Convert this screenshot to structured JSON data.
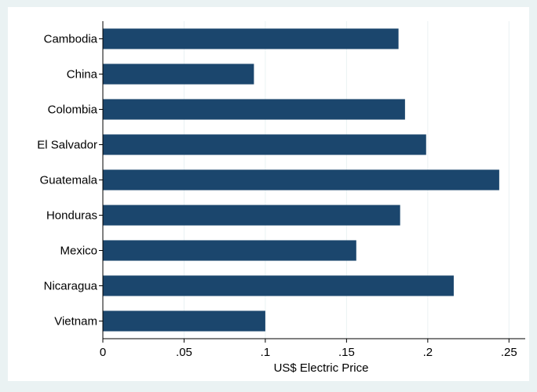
{
  "chart_data": {
    "type": "bar",
    "orientation": "horizontal",
    "categories": [
      "Cambodia",
      "China",
      "Colombia",
      "El Salvador",
      "Guatemala",
      "Honduras",
      "Mexico",
      "Nicaragua",
      "Vietnam"
    ],
    "values": [
      0.182,
      0.093,
      0.186,
      0.199,
      0.244,
      0.183,
      0.156,
      0.216,
      0.1
    ],
    "xlabel": "US$ Electric Price",
    "ylabel": "",
    "xlim": [
      0,
      0.26
    ],
    "xticks": [
      0,
      0.05,
      0.1,
      0.15,
      0.2,
      0.25
    ],
    "xtick_labels": [
      "0",
      ".05",
      ".1",
      ".15",
      ".2",
      ".25"
    ],
    "grid": true,
    "colors": {
      "bar": "#1b466d",
      "background": "#eaf2f3",
      "plot_background": "#ffffff",
      "grid": "#eaf2f3"
    }
  }
}
